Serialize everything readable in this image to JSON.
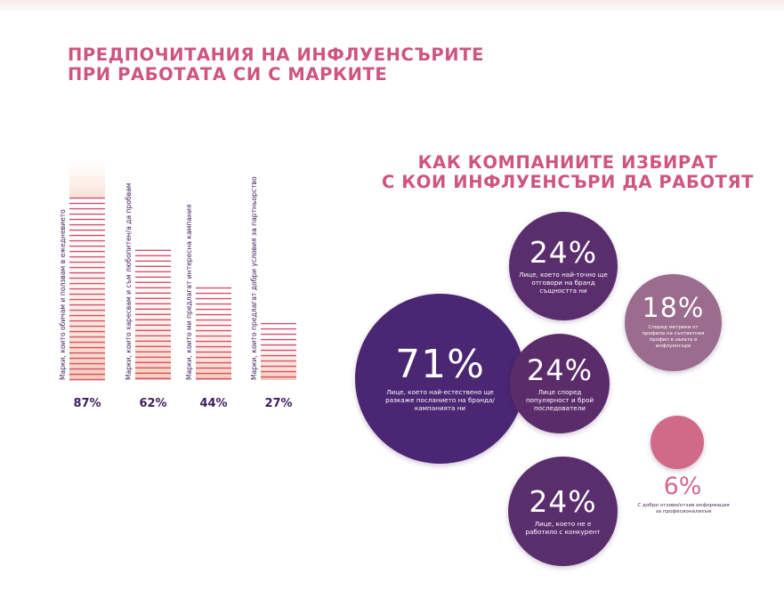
{
  "left_chart": {
    "title_line1": "ПРЕДПОЧИТАНИЯ НА ИНФЛУЕНСЪРИТЕ",
    "title_line2": "ПРИ РАБОТАТА СИ С МАРКИТЕ"
  },
  "right_chart": {
    "title_line1": "КАК КОМПАНИИТЕ ИЗБИРАТ",
    "title_line2": "С КОИ ИНФЛУЕНСЪРИ ДА РАБОТЯТ"
  },
  "colors": {
    "title": "#cf5480",
    "bar_stripe": "#d24f72",
    "bar_fill_bottom": "#f6c6ad",
    "label_text": "#3c1c58",
    "bubble_dark": "#4a2673",
    "bubble_mid": "#5a2d6c",
    "bubble_light": "#9b6c8d",
    "bubble_pink": "#d16a88"
  },
  "chart_data": [
    {
      "type": "bar",
      "title": "ПРЕДПОЧИТАНИЯ НА ИНФЛУЕНСЪРИТЕ ПРИ РАБОТАТА СИ С МАРКИТЕ",
      "ylim": [
        0,
        100
      ],
      "categories": [
        "Марки, които обичам и ползвам в ежедневието",
        "Марки, които харесвам и съм любопитен/а да пробвам",
        "Марки, които ми предлагат интересна кампания",
        "Марки, които предлагат добри условия за партньорство"
      ],
      "values": [
        87,
        62,
        44,
        27
      ],
      "value_labels": [
        "87%",
        "62%",
        "44%",
        "27%"
      ]
    },
    {
      "type": "bubble",
      "title": "КАК КОМПАНИИТЕ ИЗБИРАТ С КОИ ИНФЛУЕНСЪРИ ДА РАБОТЯТ",
      "items": [
        {
          "value": 71,
          "label": "71%",
          "text": "Лице, което най-естествено ще разкаже посланието на бранда/кампанията ни"
        },
        {
          "value": 24,
          "label": "24%",
          "text": "Лице, което най-точно ще отговори на бранд същността ни"
        },
        {
          "value": 24,
          "label": "24%",
          "text": "Лице според популярност и брой последователи"
        },
        {
          "value": 24,
          "label": "24%",
          "text": "Лице, което не е работило с конкурент"
        },
        {
          "value": 18,
          "label": "18%",
          "text": "Според метрики от профила на съответния профил в залата в инфлуенсъра"
        },
        {
          "value": 6,
          "label": "6%",
          "text": "С добри отзиви/отзив информация за професионализъм"
        }
      ]
    }
  ]
}
